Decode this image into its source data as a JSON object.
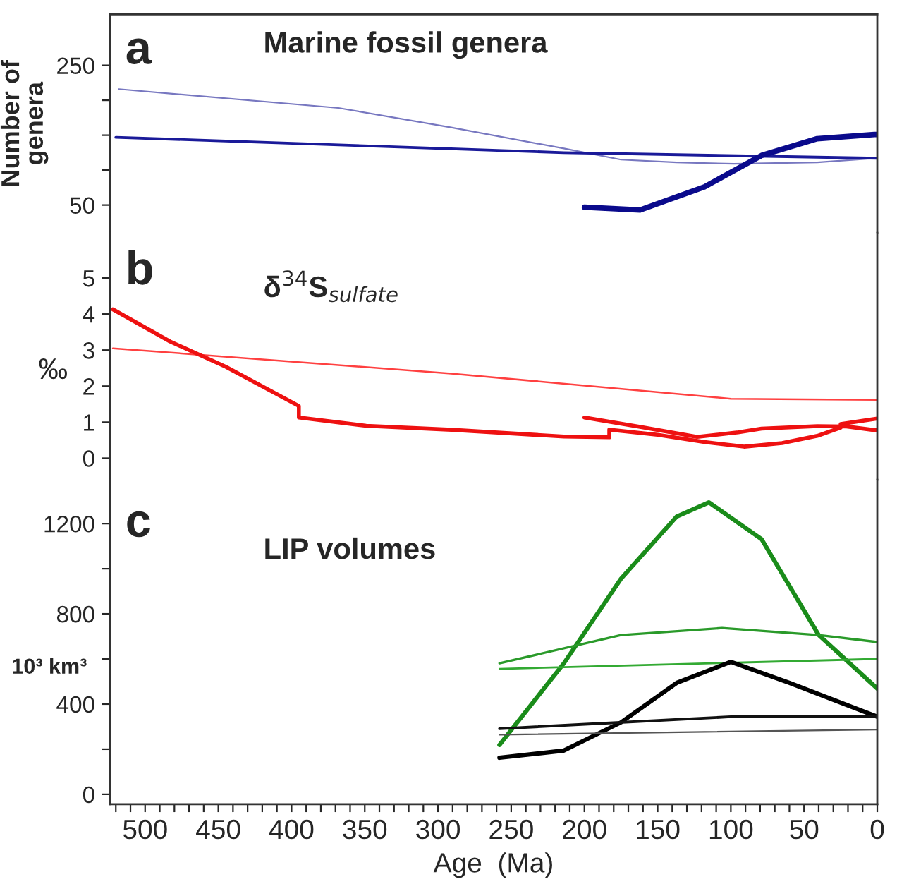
{
  "chart_data": [
    {
      "type": "line",
      "ylabel": "Number of\ngenera",
      "annotations": [
        "a",
        "Marine fossil genera"
      ],
      "xlim": [
        524,
        0
      ],
      "ylim": [
        10,
        323
      ],
      "yticks": [
        50,
        {
          "value": 100,
          "label": null
        },
        {
          "value": 150,
          "label": null
        },
        {
          "value": 200,
          "label": null
        },
        250
      ],
      "tick_labels": "y",
      "grid": false,
      "legend": false,
      "series": [
        {
          "color": "#7777c0",
          "x": [
            518,
            368,
            291,
            214,
            175,
            137,
            98,
            41,
            2
          ],
          "values": [
            216,
            189,
            161,
            131,
            115,
            111,
            109,
            111,
            117
          ]
        },
        {
          "color": "#1a1a99",
          "x": [
            520,
            214,
            0
          ],
          "values": [
            147,
            125,
            117
          ]
        },
        {
          "color": "#0a0a8c",
          "x": [
            200,
            162,
            118,
            79,
            41,
            2,
            0
          ],
          "values": [
            47,
            43,
            76,
            121,
            145,
            151,
            151
          ]
        }
      ]
    },
    {
      "type": "line",
      "ylabel": "‰",
      "annotations": [
        "b",
        "δ$^{34}$S$_{sulfate}$"
      ],
      "xlim": [
        524,
        0
      ],
      "ylim": [
        -0.6,
        6.25
      ],
      "yticks": [
        0,
        1,
        2,
        3,
        4,
        5
      ],
      "tick_labels": "y",
      "grid": false,
      "legend": false,
      "series": [
        {
          "color": "#ff4040",
          "x": [
            522,
            291,
            100,
            0
          ],
          "values": [
            3.05,
            2.35,
            1.65,
            1.62
          ]
        },
        {
          "color": "#ee1111",
          "x": [
            522,
            483,
            445,
            395,
            395,
            349,
            291,
            214,
            183,
            183,
            150,
            118,
            91,
            65,
            41,
            25,
            25,
            0
          ],
          "values": [
            4.13,
            3.24,
            2.54,
            1.45,
            1.13,
            0.9,
            0.79,
            0.6,
            0.58,
            0.79,
            0.65,
            0.45,
            0.32,
            0.42,
            0.62,
            0.85,
            0.95,
            1.1
          ]
        },
        {
          "color": "#ee1111",
          "x": [
            200,
            162,
            123,
            95,
            79,
            41,
            21,
            0
          ],
          "values": [
            1.13,
            0.87,
            0.59,
            0.72,
            0.82,
            0.89,
            0.88,
            0.77
          ]
        }
      ]
    },
    {
      "type": "line",
      "ylabel": "10³ km³",
      "xlabel": "Age  (Ma)",
      "annotations": [
        "c",
        "LIP volumes"
      ],
      "xlim": [
        524,
        0
      ],
      "ylim": [
        -44,
        1394
      ],
      "yticks": [
        0,
        {
          "value": 200,
          "label": null
        },
        400,
        {
          "value": 600,
          "label": null
        },
        800,
        {
          "value": 1000,
          "label": null
        },
        1200
      ],
      "xticks": [
        0,
        {
          "value": 10,
          "label": null
        },
        {
          "value": 20,
          "label": null
        },
        {
          "value": 30,
          "label": null
        },
        {
          "value": 40,
          "label": null
        },
        50,
        {
          "value": 60,
          "label": null
        },
        {
          "value": 70,
          "label": null
        },
        {
          "value": 80,
          "label": null
        },
        {
          "value": 90,
          "label": null
        },
        100,
        {
          "value": 110,
          "label": null
        },
        {
          "value": 120,
          "label": null
        },
        {
          "value": 130,
          "label": null
        },
        {
          "value": 140,
          "label": null
        },
        150,
        {
          "value": 160,
          "label": null
        },
        {
          "value": 170,
          "label": null
        },
        {
          "value": 180,
          "label": null
        },
        {
          "value": 190,
          "label": null
        },
        200,
        {
          "value": 210,
          "label": null
        },
        {
          "value": 220,
          "label": null
        },
        {
          "value": 230,
          "label": null
        },
        {
          "value": 240,
          "label": null
        },
        250,
        {
          "value": 260,
          "label": null
        },
        {
          "value": 270,
          "label": null
        },
        {
          "value": 280,
          "label": null
        },
        {
          "value": 290,
          "label": null
        },
        300,
        {
          "value": 310,
          "label": null
        },
        {
          "value": 320,
          "label": null
        },
        {
          "value": 330,
          "label": null
        },
        {
          "value": 340,
          "label": null
        },
        350,
        {
          "value": 360,
          "label": null
        },
        {
          "value": 370,
          "label": null
        },
        {
          "value": 380,
          "label": null
        },
        {
          "value": 390,
          "label": null
        },
        400,
        {
          "value": 410,
          "label": null
        },
        {
          "value": 420,
          "label": null
        },
        {
          "value": 430,
          "label": null
        },
        {
          "value": 440,
          "label": null
        },
        450,
        {
          "value": 460,
          "label": null
        },
        {
          "value": 470,
          "label": null
        },
        {
          "value": 480,
          "label": null
        },
        {
          "value": 490,
          "label": null
        },
        500,
        {
          "value": 510,
          "label": null
        },
        {
          "value": 520,
          "label": null
        }
      ],
      "grid": false,
      "legend": false,
      "series": [
        {
          "color": "#1a8c1a",
          "x": [
            258,
            214,
            175,
            137,
            115,
            79,
            40,
            0
          ],
          "values": [
            219,
            581,
            956,
            1231,
            1294,
            1131,
            706,
            469
          ]
        },
        {
          "color": "#2a9a2a",
          "x": [
            258,
            175,
            106,
            40,
            0
          ],
          "values": [
            581,
            706,
            737,
            706,
            675
          ]
        },
        {
          "color": "#33aa33",
          "x": [
            258,
            0
          ],
          "values": [
            556,
            600
          ]
        },
        {
          "color": "#000000",
          "x": [
            258,
            214,
            175,
            137,
            100,
            60,
            0
          ],
          "values": [
            162,
            194,
            319,
            494,
            587,
            494,
            344
          ]
        },
        {
          "color": "#111111",
          "x": [
            258,
            100,
            0
          ],
          "values": [
            291,
            344,
            344
          ]
        },
        {
          "color": "#555555",
          "x": [
            258,
            0
          ],
          "values": [
            264,
            287
          ]
        }
      ]
    }
  ]
}
